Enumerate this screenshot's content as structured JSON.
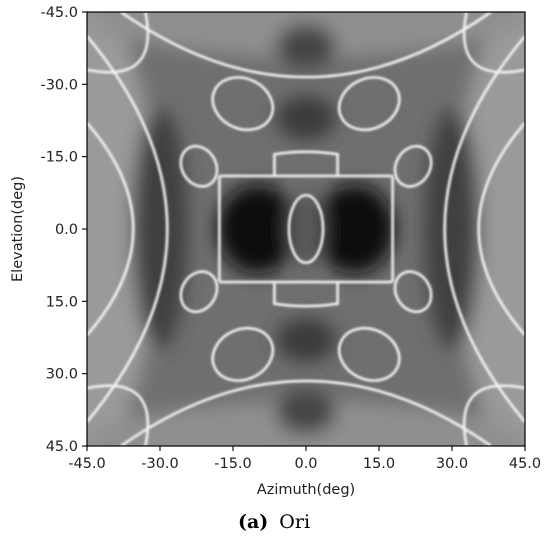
{
  "chart_data": {
    "type": "heatmap",
    "title": "",
    "xlabel": "Azimuth(deg)",
    "ylabel": "Elevation(deg)",
    "xlim": [
      -45.0,
      45.0
    ],
    "ylim": [
      45.0,
      -45.0
    ],
    "y_axis_inverted": true,
    "xticks": [
      -45.0,
      -30.0,
      -15.0,
      0.0,
      15.0,
      30.0,
      45.0
    ],
    "xtick_labels": [
      "-45.0",
      "-30.0",
      "-15.0",
      "0.0",
      "15.0",
      "30.0",
      "45.0"
    ],
    "yticks": [
      -45.0,
      -30.0,
      -15.0,
      0.0,
      15.0,
      30.0,
      45.0
    ],
    "ytick_labels": [
      "-45.0",
      "-30.0",
      "-15.0",
      "0.0",
      "15.0",
      "30.0",
      "45.0"
    ],
    "colormap": "grayscale",
    "grid": false,
    "legend": false
  },
  "caption": {
    "label": "(a)",
    "text": "Ori"
  },
  "colors": {
    "background": "#ffffff",
    "axis": "#000000",
    "text": "#222222"
  }
}
